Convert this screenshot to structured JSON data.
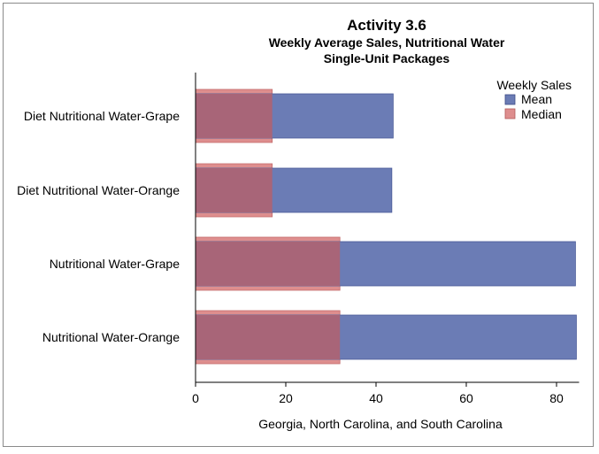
{
  "chart_data": {
    "type": "bar",
    "orientation": "horizontal",
    "title": "Activity 3.6",
    "subtitle": [
      "Weekly Average Sales, Nutritional Water",
      "Single-Unit Packages"
    ],
    "xlabel": "Georgia, North Carolina, and South Carolina",
    "ylabel": "",
    "xlim": [
      0,
      85
    ],
    "xticks": [
      0,
      20,
      40,
      60,
      80
    ],
    "categories": [
      "Diet Nutritional Water-Grape",
      "Diet Nutritional Water-Orange",
      "Nutritional Water-Grape",
      "Nutritional Water-Orange"
    ],
    "legend": {
      "title": "Weekly Sales",
      "position": "top-right"
    },
    "series": [
      {
        "name": "Mean",
        "color": "#6b7cb5",
        "values": [
          43.8,
          43.5,
          84.2,
          84.4
        ]
      },
      {
        "name": "Median",
        "color": "#de8e8e",
        "values": [
          17,
          17,
          32,
          32
        ]
      }
    ],
    "overlap_color": "#a86578",
    "grid": false
  }
}
